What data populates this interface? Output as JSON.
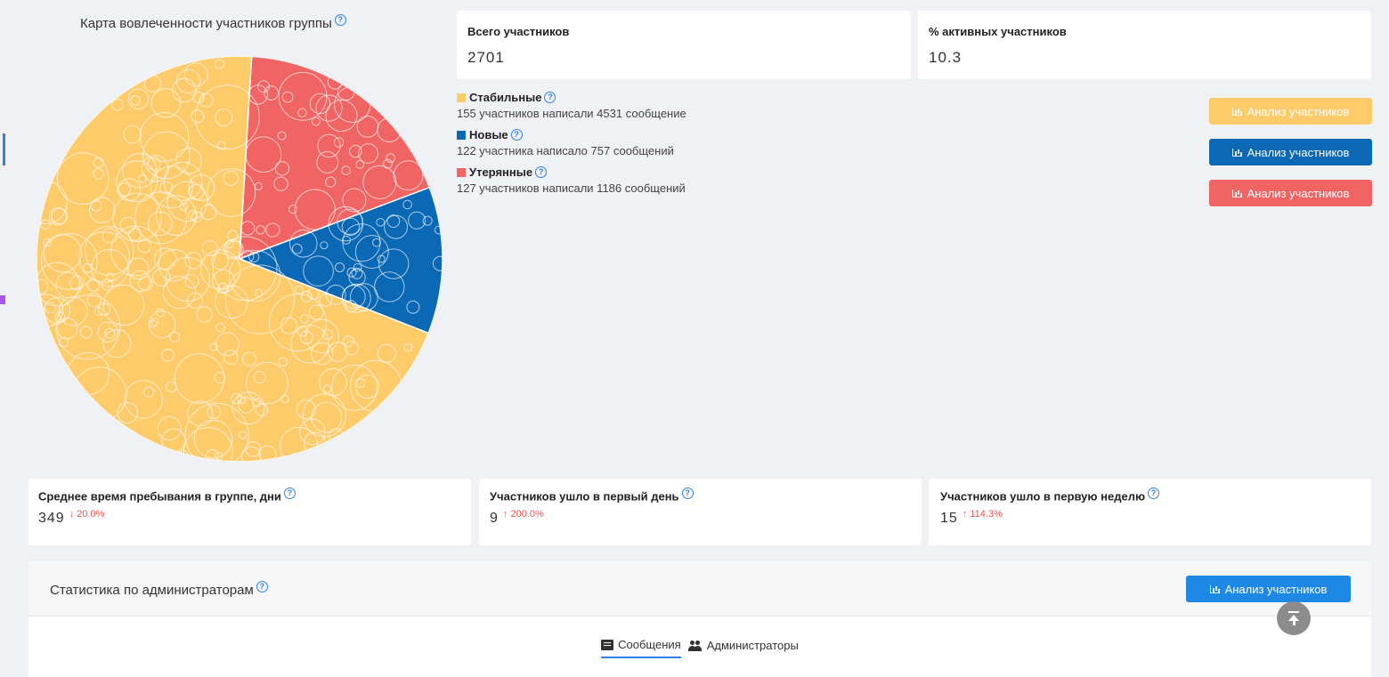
{
  "chart_title": "Карта вовлеченности участников группы",
  "chart_data": {
    "type": "pie",
    "title": "Карта вовлеченности участников группы",
    "categories": [
      "Стабильные",
      "Новые",
      "Утерянные"
    ],
    "values": [
      4531,
      757,
      1186
    ],
    "colors": [
      "#fecb6b",
      "#0a68b4",
      "#f06464"
    ]
  },
  "total_members": {
    "label": "Всего участников",
    "value": "2701"
  },
  "active_pct": {
    "label": "% активных участников",
    "value": "10.3"
  },
  "legend": [
    {
      "name": "Стабильные",
      "desc": "155 участников написали 4531 сообщение",
      "color": "#fecb6b"
    },
    {
      "name": "Новые",
      "desc": "122 участника написало 757 сообщений",
      "color": "#0a68b4"
    },
    {
      "name": "Утерянные",
      "desc": "127 участников написали 1186 сообщений",
      "color": "#f06464"
    }
  ],
  "buttons": {
    "analyze_stable": "Анализ участников",
    "analyze_new": "Анализ участников",
    "analyze_lost": "Анализ участников",
    "analyze_admins": "Анализ участников"
  },
  "stats": [
    {
      "label": "Среднее время пребывания в группе, дни",
      "value": "349",
      "change": "20.0%",
      "dir": "down"
    },
    {
      "label": "Участников ушло в первый день",
      "value": "9",
      "change": "200.0%",
      "dir": "up"
    },
    {
      "label": "Участников ушло в первую неделю",
      "value": "15",
      "change": "114.3%",
      "dir": "up"
    }
  ],
  "admin_section": {
    "title": "Статистика по администраторам",
    "tabs": [
      "Сообщения",
      "Администраторы"
    ]
  }
}
